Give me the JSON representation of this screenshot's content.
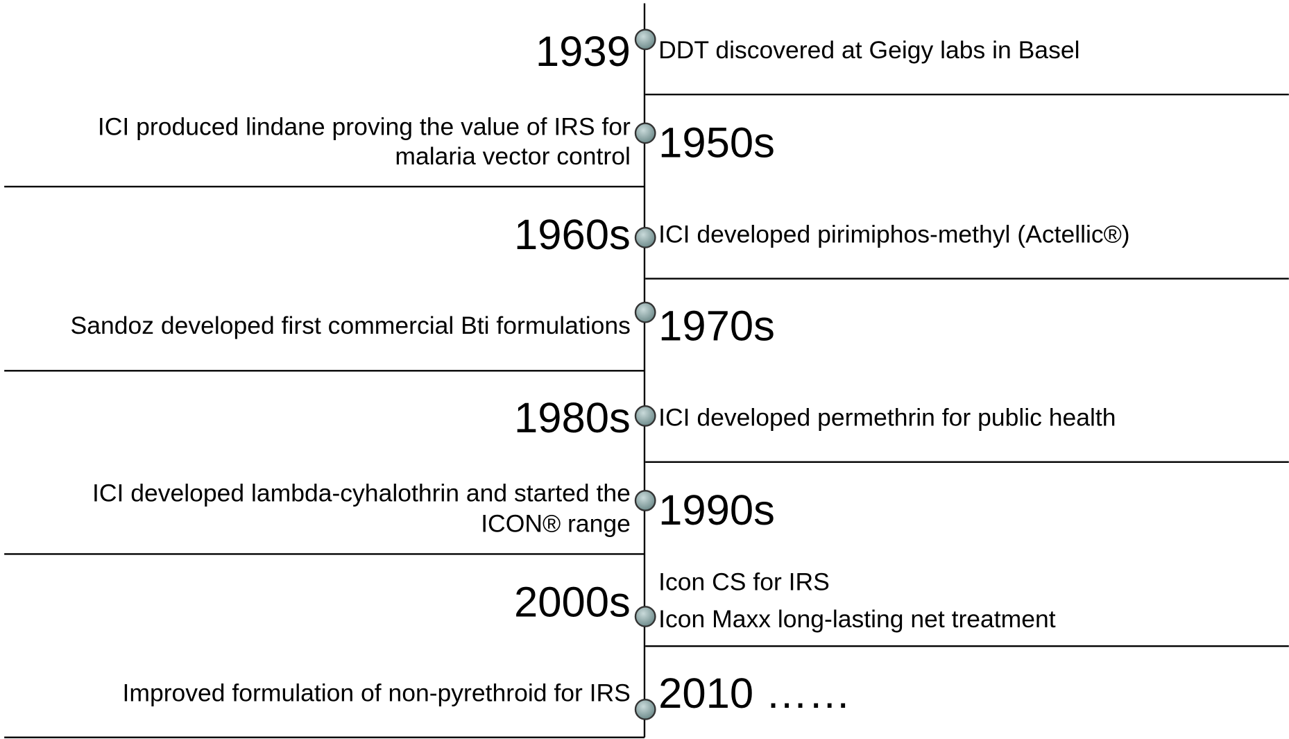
{
  "events": [
    {
      "year": "1939",
      "lines": [
        "DDT discovered at Geigy labs in Basel"
      ]
    },
    {
      "year": "1950s",
      "lines": [
        "ICI produced lindane proving the value of IRS for",
        "malaria vector control"
      ]
    },
    {
      "year": "1960s",
      "lines": [
        "ICI developed pirimiphos-methyl (Actellic®)"
      ]
    },
    {
      "year": "1970s",
      "lines": [
        "Sandoz developed first commercial Bti formulations"
      ]
    },
    {
      "year": "1980s",
      "lines": [
        "ICI developed permethrin for public health"
      ]
    },
    {
      "year": "1990s",
      "lines": [
        "ICI developed lambda-cyhalothrin and started the",
        "ICON® range"
      ]
    },
    {
      "year": "2000s",
      "lines": [
        "Icon CS for IRS",
        "Icon Maxx long-lasting net treatment"
      ]
    },
    {
      "year": "2010 ……",
      "lines": [
        "Improved formulation of non-pyrethroid for IRS"
      ]
    }
  ]
}
